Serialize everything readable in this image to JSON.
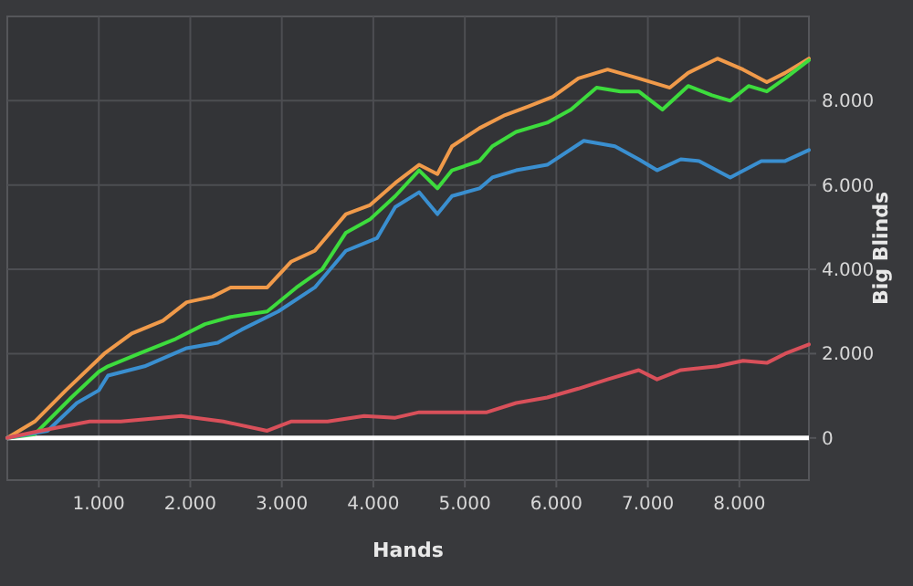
{
  "chart_data": {
    "type": "line",
    "xlabel": "Hands",
    "ylabel": "Big Blinds",
    "xlim": [
      0,
      8760
    ],
    "ylim": [
      -1000,
      10000
    ],
    "xticks": [
      {
        "value": 1000,
        "label": "1.000"
      },
      {
        "value": 2000,
        "label": "2.000"
      },
      {
        "value": 3000,
        "label": "3.000"
      },
      {
        "value": 4000,
        "label": "4.000"
      },
      {
        "value": 5000,
        "label": "5.000"
      },
      {
        "value": 6000,
        "label": "6.000"
      },
      {
        "value": 7000,
        "label": "7.000"
      },
      {
        "value": 8000,
        "label": "8.000"
      }
    ],
    "yticks": [
      0,
      {
        "value": 2000,
        "label": "2.000"
      },
      {
        "value": 4000,
        "label": "4.000"
      },
      {
        "value": 6000,
        "label": "6.000"
      },
      {
        "value": 8000,
        "label": "8.000"
      }
    ],
    "grid": true,
    "marker": "none",
    "line_style": "solid",
    "ref_lines": [
      {
        "axis": "y",
        "value": 0,
        "color": "#ffffff"
      }
    ],
    "series": [
      {
        "color": "#f09a4a",
        "x": [
          0,
          300,
          640,
          1060,
          1360,
          1700,
          1960,
          2240,
          2440,
          2840,
          3100,
          3360,
          3700,
          3960,
          4240,
          4500,
          4700,
          4860,
          5160,
          5440,
          5700,
          5960,
          6240,
          6560,
          6900,
          7240,
          7440,
          7760,
          8040,
          8300,
          8500,
          8760
        ],
        "values": [
          0,
          390,
          1130,
          2000,
          2480,
          2780,
          3220,
          3350,
          3570,
          3570,
          4180,
          4440,
          5310,
          5520,
          6050,
          6480,
          6260,
          6920,
          7350,
          7660,
          7870,
          8090,
          8530,
          8740,
          8530,
          8310,
          8660,
          9000,
          8740,
          8440,
          8660,
          9000
        ]
      },
      {
        "color": "#3ddc3d",
        "x": [
          0,
          300,
          700,
          1000,
          1100,
          1440,
          1840,
          2160,
          2440,
          2840,
          3160,
          3440,
          3700,
          3960,
          4240,
          4500,
          4700,
          4860,
          5160,
          5300,
          5560,
          5900,
          6160,
          6440,
          6700,
          6900,
          7160,
          7440,
          7700,
          7900,
          8100,
          8300,
          8500,
          8760
        ],
        "values": [
          0,
          90,
          960,
          1570,
          1700,
          2000,
          2350,
          2700,
          2870,
          3000,
          3570,
          4000,
          4870,
          5180,
          5740,
          6350,
          5920,
          6350,
          6570,
          6920,
          7260,
          7480,
          7790,
          8310,
          8220,
          8220,
          7790,
          8350,
          8130,
          8000,
          8350,
          8220,
          8530,
          8960
        ]
      },
      {
        "color": "#3a8fd0",
        "x": [
          0,
          440,
          760,
          1000,
          1100,
          1500,
          1960,
          2300,
          2560,
          2960,
          3360,
          3700,
          4040,
          4240,
          4500,
          4700,
          4860,
          5160,
          5300,
          5560,
          5900,
          6300,
          6640,
          6900,
          7100,
          7360,
          7560,
          7900,
          8240,
          8500,
          8760
        ],
        "values": [
          0,
          170,
          830,
          1130,
          1480,
          1700,
          2130,
          2260,
          2570,
          3000,
          3570,
          4440,
          4740,
          5480,
          5830,
          5310,
          5740,
          5920,
          6180,
          6350,
          6480,
          7050,
          6920,
          6610,
          6350,
          6610,
          6570,
          6180,
          6570,
          6570,
          6830
        ]
      },
      {
        "color": "#d9505a",
        "x": [
          0,
          360,
          900,
          1240,
          1900,
          2360,
          2840,
          3100,
          3500,
          3900,
          4240,
          4500,
          4860,
          5240,
          5560,
          5900,
          6240,
          6560,
          6900,
          7100,
          7360,
          7760,
          8040,
          8300,
          8500,
          8760
        ],
        "values": [
          0,
          170,
          390,
          390,
          520,
          390,
          170,
          390,
          390,
          520,
          480,
          610,
          610,
          610,
          830,
          960,
          1170,
          1390,
          1610,
          1390,
          1610,
          1700,
          1830,
          1780,
          2000,
          2220
        ]
      }
    ]
  }
}
